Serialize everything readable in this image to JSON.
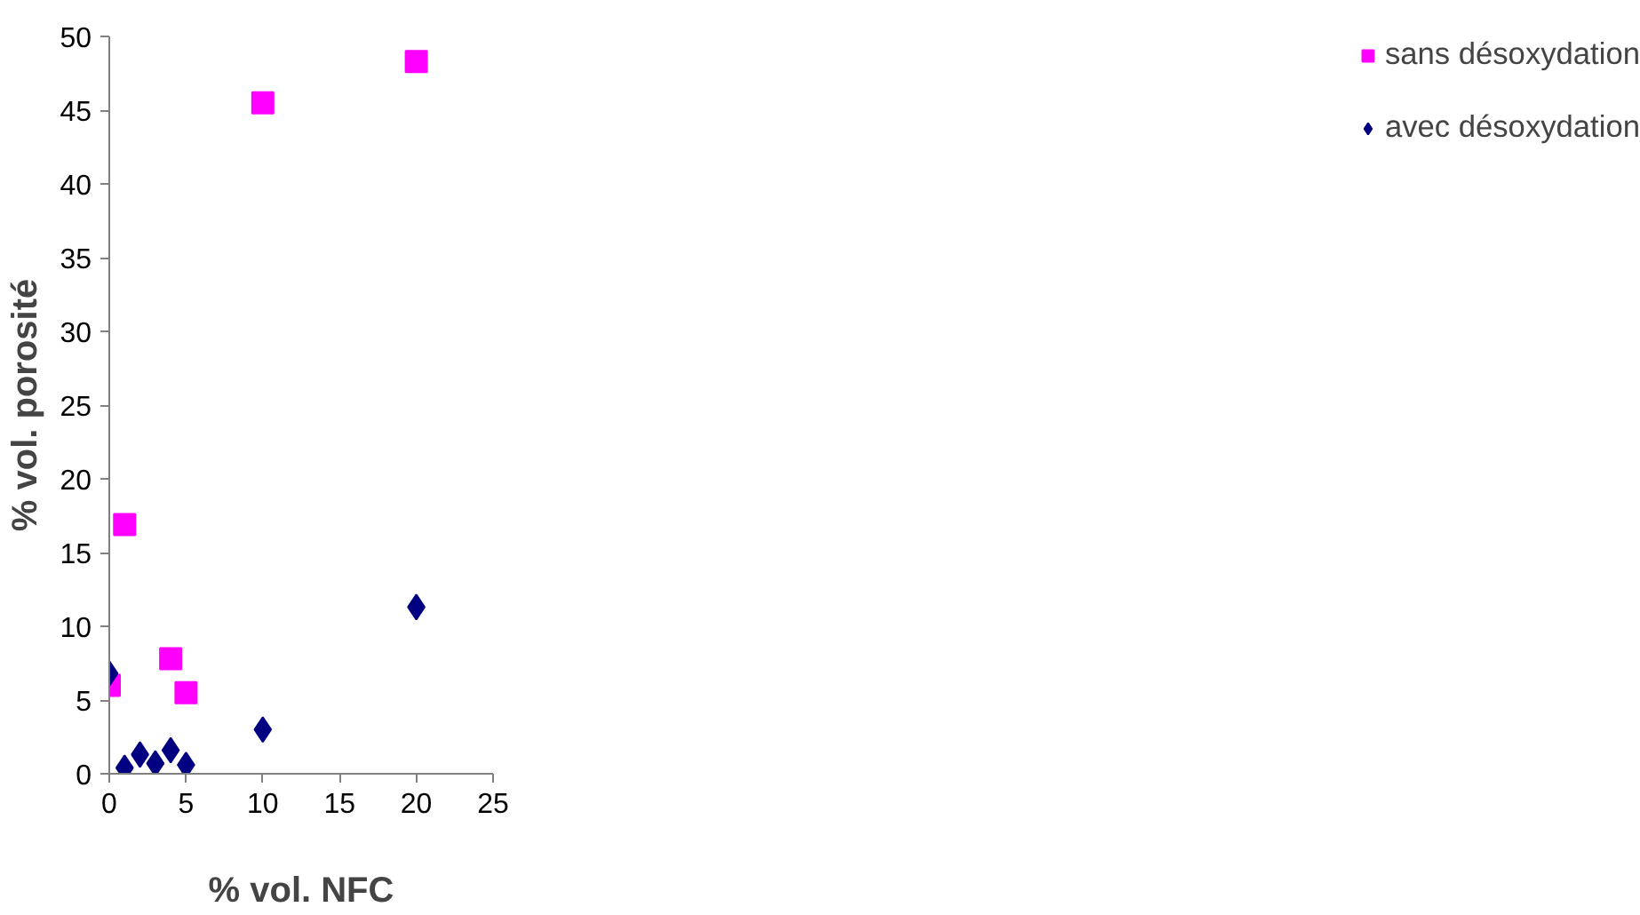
{
  "chart_data": {
    "type": "scatter",
    "xlabel": "% vol. NFC",
    "ylabel": "% vol. porosité",
    "xlim": [
      0,
      25
    ],
    "xticks": [
      0,
      5,
      10,
      15,
      20,
      25
    ],
    "ylim": [
      0,
      50
    ],
    "yticks": [
      0,
      5,
      10,
      15,
      20,
      25,
      30,
      35,
      40,
      45,
      50
    ],
    "grid": false,
    "legend": "right",
    "series": [
      {
        "name": "sans désoxydation",
        "color": "#ff00ff",
        "marker": "square",
        "x": [
          0,
          1,
          4,
          5,
          10,
          20
        ],
        "values": [
          6.0,
          16.9,
          7.8,
          5.5,
          45.5,
          48.3
        ]
      },
      {
        "name": "avec désoxydation",
        "color": "#000080",
        "marker": "diamond",
        "x": [
          0,
          1,
          2,
          3,
          4,
          5,
          10,
          20
        ],
        "values": [
          6.8,
          0.4,
          1.3,
          0.7,
          1.6,
          0.6,
          3.0,
          11.3
        ]
      }
    ]
  }
}
